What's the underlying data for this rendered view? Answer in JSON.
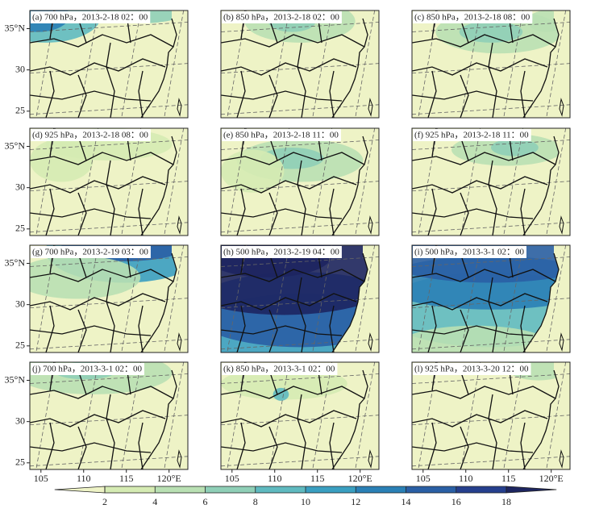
{
  "panels": [
    {
      "label": "(a) 700 hPa，2013-2-18 02：00"
    },
    {
      "label": "(b) 850 hPa，2013-2-18 02：00"
    },
    {
      "label": "(c) 850 hPa，2013-2-18 08：00"
    },
    {
      "label": "(d) 925 hPa，2013-2-18 08：00"
    },
    {
      "label": "(e) 850 hPa，2013-2-18 11：00"
    },
    {
      "label": "(f) 925 hPa，2013-2-18 11：00"
    },
    {
      "label": "(g) 700 hPa，2013-2-19 03：00"
    },
    {
      "label": "(h) 500 hPa，2013-2-19 04：00"
    },
    {
      "label": "(i) 500 hPa，2013-3-1 02：00"
    },
    {
      "label": "(j) 700 hPa，2013-3-1 02：00"
    },
    {
      "label": "(k) 850 hPa，2013-3-1 02：00"
    },
    {
      "label": "(l) 925 hPa，2013-3-20 12：00"
    }
  ],
  "axes": {
    "xlim": [
      103.7,
      122.2
    ],
    "ylim": [
      24.2,
      37.2
    ],
    "xticks": [
      105,
      110,
      115,
      {
        "value": 120,
        "label": "120°E"
      }
    ],
    "yticks": [
      {
        "value": 35,
        "label": "35°N"
      },
      30,
      25
    ]
  },
  "colorbar": {
    "ticks": [
      2,
      4,
      6,
      8,
      10,
      12,
      14,
      16,
      18
    ],
    "colors": [
      "#eef3c6",
      "#d5ebb3",
      "#b9e0b3",
      "#8fcfb7",
      "#5fbac0",
      "#3a9fc1",
      "#2a80b6",
      "#2a5fa5",
      "#253f8d",
      "#1d2560"
    ]
  }
}
